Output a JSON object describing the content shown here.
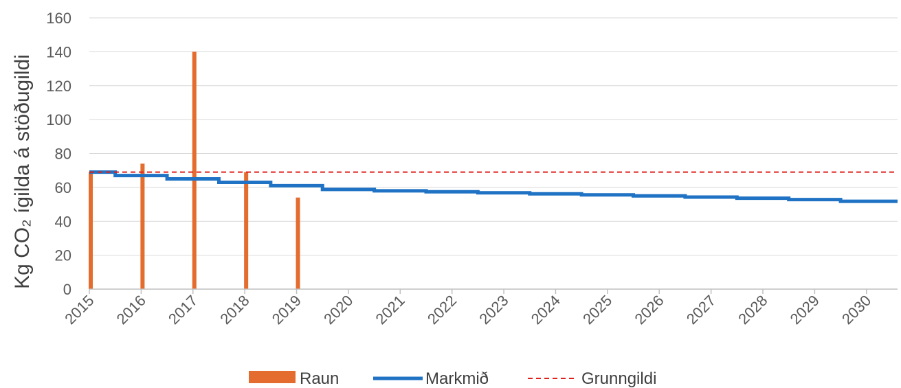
{
  "chart_data": {
    "type": "line",
    "ylabel": "Kg CO₂ ígilda á stöðugildi",
    "ylim": [
      0,
      160
    ],
    "yticks": [
      0,
      20,
      40,
      60,
      80,
      100,
      120,
      140,
      160
    ],
    "xlim": [
      2015,
      2030.6
    ],
    "xticks": [
      "2015",
      "2016",
      "2017",
      "2018",
      "2019",
      "2020",
      "2021",
      "2022",
      "2023",
      "2024",
      "2025",
      "2026",
      "2027",
      "2028",
      "2029",
      "2030"
    ],
    "grid": true,
    "legend_position": "bottom",
    "series": [
      {
        "name": "Raun",
        "type": "bar",
        "color": "#E46C2E",
        "x": [
          "2015",
          "2016",
          "2017",
          "2018",
          "2019"
        ],
        "values": [
          69,
          74,
          140,
          69,
          54
        ]
      },
      {
        "name": "Markmið",
        "type": "step",
        "color": "#1F72C4",
        "x": [
          "2015",
          "2015.5",
          "2016.5",
          "2017.5",
          "2018.5",
          "2019.5",
          "2020.5",
          "2021.5",
          "2022.5",
          "2023.5",
          "2024.5",
          "2025.5",
          "2026.5",
          "2027.5",
          "2028.5",
          "2029.5",
          "2030.6"
        ],
        "values": [
          69,
          67,
          65,
          63,
          61,
          58.8,
          58,
          57.4,
          56.8,
          56.2,
          55.6,
          55,
          54.3,
          53.6,
          52.8,
          51.8,
          51.8
        ]
      },
      {
        "name": "Grunngildi",
        "type": "dashed",
        "color": "#E0201B",
        "values": [
          69
        ]
      }
    ]
  }
}
